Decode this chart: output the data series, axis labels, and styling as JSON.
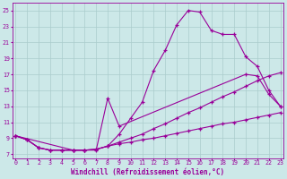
{
  "bg_color": "#cce8e8",
  "grid_color": "#aacccc",
  "line_color": "#990099",
  "x_ticks": [
    0,
    1,
    2,
    3,
    4,
    5,
    6,
    7,
    8,
    9,
    10,
    11,
    12,
    13,
    14,
    15,
    16,
    17,
    18,
    19,
    20,
    21,
    22,
    23
  ],
  "y_ticks": [
    7,
    9,
    11,
    13,
    15,
    17,
    19,
    21,
    23,
    25
  ],
  "xlim": [
    -0.3,
    23.3
  ],
  "ylim": [
    6.5,
    26.0
  ],
  "line1_x": [
    0,
    1,
    2,
    3,
    4,
    5,
    6,
    7,
    8,
    9,
    10,
    11,
    12,
    13,
    14,
    15,
    16,
    17,
    18,
    19,
    20,
    21,
    22,
    23
  ],
  "line1_y": [
    9.3,
    8.8,
    7.8,
    7.5,
    7.5,
    7.5,
    7.5,
    7.6,
    8.0,
    9.5,
    11.5,
    13.5,
    17.5,
    20.0,
    23.2,
    25.0,
    24.8,
    22.5,
    22.0,
    22.0,
    19.2,
    18.0,
    15.0,
    13.0
  ],
  "line2_x": [
    0,
    5,
    6,
    7,
    8,
    9,
    20,
    21,
    22,
    23
  ],
  "line2_y": [
    9.3,
    7.5,
    7.5,
    7.5,
    14.0,
    10.5,
    17.0,
    16.8,
    14.5,
    13.0
  ],
  "line3_x": [
    0,
    1,
    2,
    3,
    4,
    5,
    6,
    7,
    8,
    9,
    10,
    11,
    12,
    13,
    14,
    15,
    16,
    17,
    18,
    19,
    20,
    21,
    22,
    23
  ],
  "line3_y": [
    9.3,
    8.8,
    7.8,
    7.5,
    7.5,
    7.5,
    7.5,
    7.6,
    8.0,
    8.5,
    9.0,
    9.5,
    10.2,
    10.8,
    11.5,
    12.2,
    12.8,
    13.5,
    14.2,
    14.8,
    15.5,
    16.2,
    16.8,
    17.2
  ],
  "line4_x": [
    0,
    1,
    2,
    3,
    4,
    5,
    6,
    7,
    8,
    9,
    10,
    11,
    12,
    13,
    14,
    15,
    16,
    17,
    18,
    19,
    20,
    21,
    22,
    23
  ],
  "line4_y": [
    9.3,
    8.8,
    7.8,
    7.5,
    7.5,
    7.5,
    7.5,
    7.6,
    8.0,
    8.3,
    8.5,
    8.8,
    9.0,
    9.3,
    9.6,
    9.9,
    10.2,
    10.5,
    10.8,
    11.0,
    11.3,
    11.6,
    11.9,
    12.2
  ],
  "xlabel": "Windchill (Refroidissement éolien,°C)",
  "xlabel_fontsize": 5.5,
  "tick_fontsize": 4.8,
  "marker": "+",
  "marker_size": 3,
  "marker_ew": 0.9,
  "line_width": 0.8
}
